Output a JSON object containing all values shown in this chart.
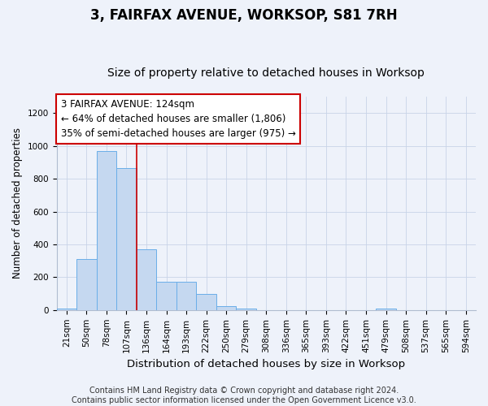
{
  "title": "3, FAIRFAX AVENUE, WORKSOP, S81 7RH",
  "subtitle": "Size of property relative to detached houses in Worksop",
  "xlabel": "Distribution of detached houses by size in Worksop",
  "ylabel": "Number of detached properties",
  "categories": [
    "21sqm",
    "50sqm",
    "78sqm",
    "107sqm",
    "136sqm",
    "164sqm",
    "193sqm",
    "222sqm",
    "250sqm",
    "279sqm",
    "308sqm",
    "336sqm",
    "365sqm",
    "393sqm",
    "422sqm",
    "451sqm",
    "479sqm",
    "508sqm",
    "537sqm",
    "565sqm",
    "594sqm"
  ],
  "values": [
    10,
    310,
    970,
    865,
    370,
    170,
    170,
    100,
    25,
    10,
    0,
    0,
    0,
    0,
    0,
    0,
    10,
    0,
    0,
    0,
    0
  ],
  "bar_color": "#c5d8f0",
  "bar_edge_color": "#6aaee8",
  "annotation_box_text": "3 FAIRFAX AVENUE: 124sqm\n← 64% of detached houses are smaller (1,806)\n35% of semi-detached houses are larger (975) →",
  "annotation_box_color": "#ffffff",
  "annotation_box_edge_color": "#cc0000",
  "vline_color": "#cc0000",
  "ylim": [
    0,
    1300
  ],
  "yticks": [
    0,
    200,
    400,
    600,
    800,
    1000,
    1200
  ],
  "grid_color": "#c8d4e8",
  "background_color": "#eef2fa",
  "footer_text": "Contains HM Land Registry data © Crown copyright and database right 2024.\nContains public sector information licensed under the Open Government Licence v3.0.",
  "title_fontsize": 12,
  "subtitle_fontsize": 10,
  "xlabel_fontsize": 9.5,
  "ylabel_fontsize": 8.5,
  "tick_fontsize": 7.5,
  "annotation_fontsize": 8.5,
  "footer_fontsize": 7
}
